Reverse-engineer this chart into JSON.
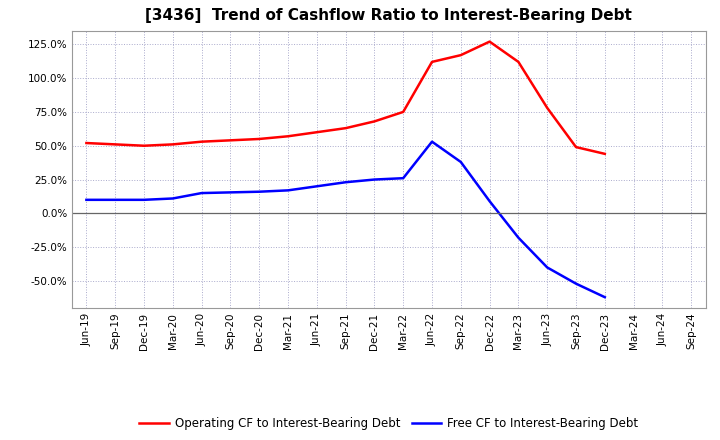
{
  "title": "[3436]  Trend of Cashflow Ratio to Interest-Bearing Debt",
  "x_labels": [
    "Jun-19",
    "Sep-19",
    "Dec-19",
    "Mar-20",
    "Jun-20",
    "Sep-20",
    "Dec-20",
    "Mar-21",
    "Jun-21",
    "Sep-21",
    "Dec-21",
    "Mar-22",
    "Jun-22",
    "Sep-22",
    "Dec-22",
    "Mar-23",
    "Jun-23",
    "Sep-23",
    "Dec-23",
    "Mar-24",
    "Jun-24",
    "Sep-24"
  ],
  "operating_cf_full": [
    0.52,
    0.51,
    0.5,
    0.51,
    0.53,
    0.54,
    0.55,
    0.57,
    0.6,
    0.63,
    0.68,
    0.75,
    1.12,
    1.17,
    1.27,
    1.12,
    0.78,
    0.49,
    0.44,
    null,
    null,
    null
  ],
  "free_cf_full": [
    0.1,
    0.1,
    0.1,
    0.11,
    0.15,
    0.155,
    0.16,
    0.17,
    0.2,
    0.23,
    0.25,
    0.26,
    0.53,
    0.38,
    0.09,
    -0.18,
    -0.4,
    -0.52,
    -0.62,
    null,
    null,
    null
  ],
  "ylim": [
    -0.7,
    1.35
  ],
  "yticks": [
    -0.5,
    -0.25,
    0.0,
    0.25,
    0.5,
    0.75,
    1.0,
    1.25
  ],
  "operating_color": "#FF0000",
  "free_color": "#0000FF",
  "legend_label_operating": "Operating CF to Interest-Bearing Debt",
  "legend_label_free": "Free CF to Interest-Bearing Debt",
  "bg_color": "#FFFFFF",
  "grid_color": "#AAAACC",
  "title_fontsize": 11,
  "tick_fontsize": 7.5,
  "legend_fontsize": 8.5
}
